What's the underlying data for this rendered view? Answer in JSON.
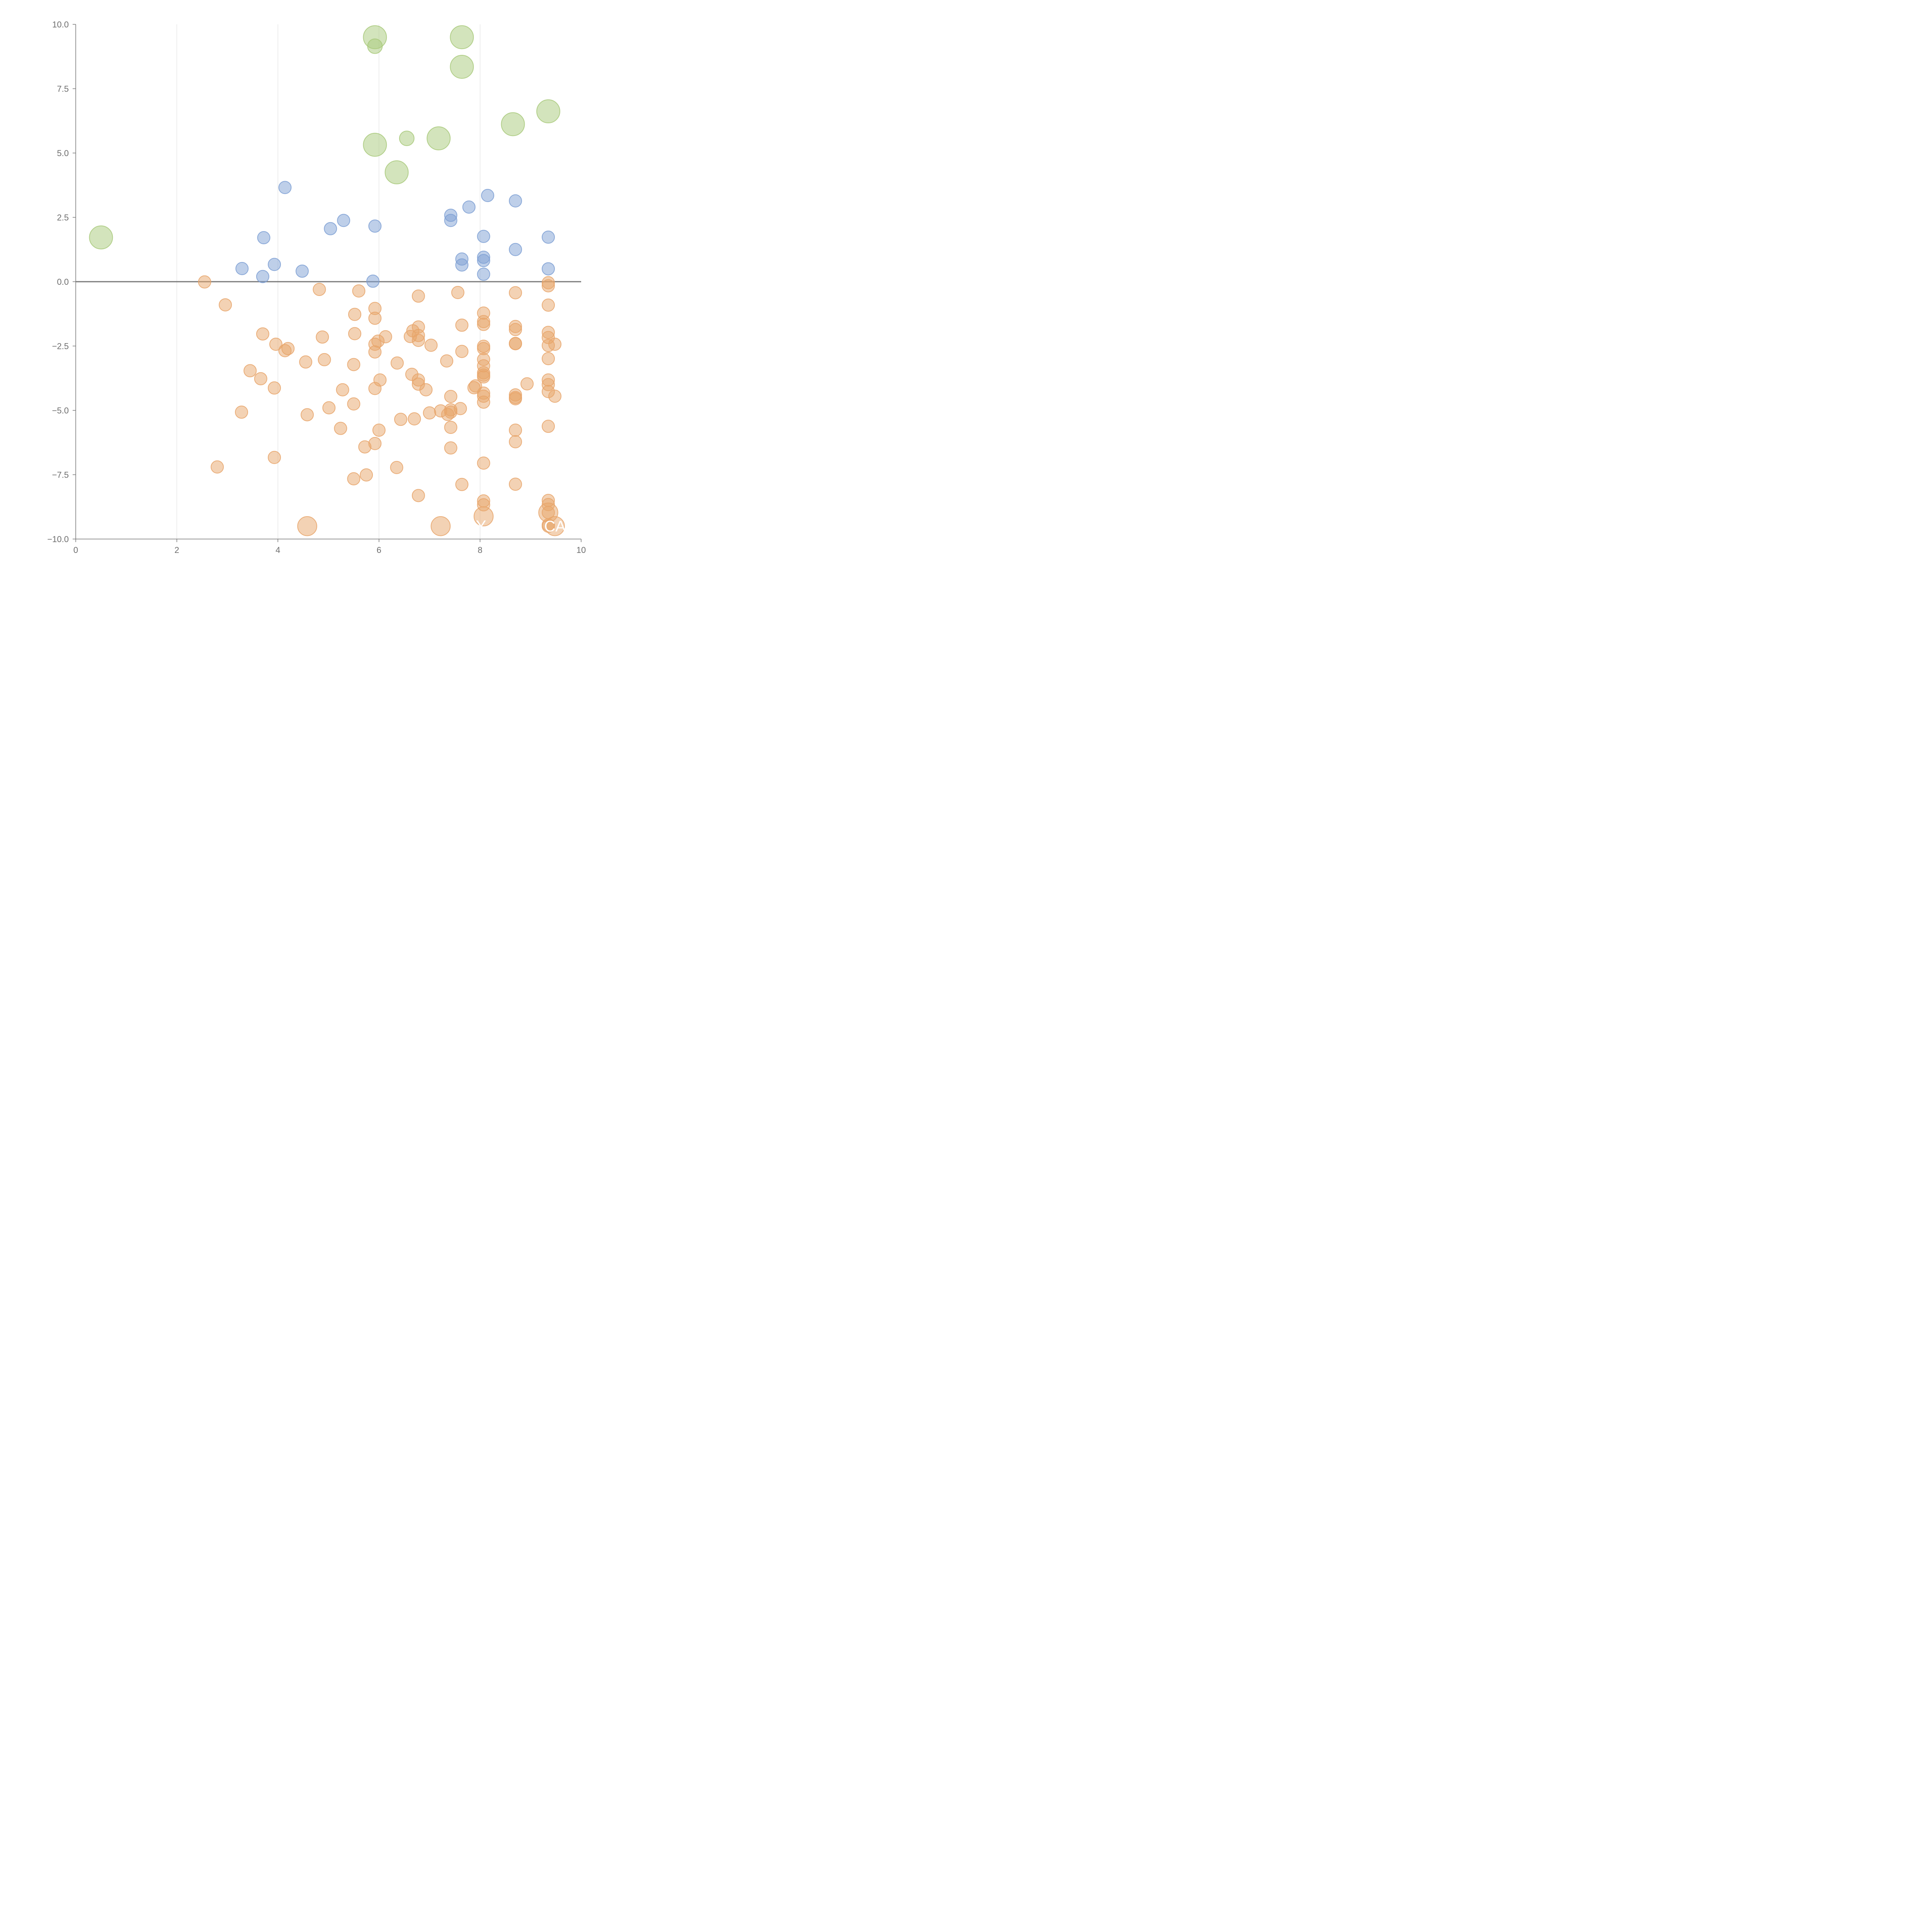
{
  "chart_data": {
    "type": "scatter",
    "variant": "bubble",
    "title": "",
    "xlabel": "",
    "ylabel": "",
    "xlim": [
      0,
      10
    ],
    "ylim": [
      -10,
      10
    ],
    "x_ticks": [
      0,
      2,
      4,
      6,
      8,
      10
    ],
    "y_ticks": [
      -10.0,
      -7.5,
      -5.0,
      -2.5,
      0.0,
      2.5,
      5.0,
      7.5,
      10.0
    ],
    "x_tick_labels": [
      "0",
      "2",
      "4",
      "6",
      "8",
      "10"
    ],
    "y_tick_labels": [
      "−10.0",
      "−7.5",
      "−5.0",
      "−2.5",
      "0.0",
      "2.5",
      "5.0",
      "7.5",
      "10.0"
    ],
    "vertical_grid": true,
    "zero_line": true,
    "legend": "none",
    "series": [
      {
        "name": "green",
        "color": "#a8c97a",
        "points": [
          {
            "x": 0.5,
            "y": 1.72,
            "size": 3.5
          },
          {
            "x": 5.92,
            "y": 9.5,
            "size": 3.5
          },
          {
            "x": 5.92,
            "y": 9.15,
            "size": 1.4
          },
          {
            "x": 7.64,
            "y": 9.5,
            "size": 3.5
          },
          {
            "x": 7.64,
            "y": 8.35,
            "size": 3.5
          },
          {
            "x": 9.35,
            "y": 6.62,
            "size": 3.5
          },
          {
            "x": 8.65,
            "y": 6.12,
            "size": 3.5
          },
          {
            "x": 6.55,
            "y": 5.57,
            "size": 1.4
          },
          {
            "x": 7.18,
            "y": 5.57,
            "size": 3.5
          },
          {
            "x": 5.92,
            "y": 5.32,
            "size": 3.5
          },
          {
            "x": 6.35,
            "y": 4.25,
            "size": 3.5
          }
        ]
      },
      {
        "name": "blue",
        "color": "#7d9fd4",
        "points": [
          {
            "x": 4.14,
            "y": 3.66
          },
          {
            "x": 8.15,
            "y": 3.35
          },
          {
            "x": 8.7,
            "y": 3.14
          },
          {
            "x": 7.78,
            "y": 2.9
          },
          {
            "x": 7.42,
            "y": 2.58
          },
          {
            "x": 7.42,
            "y": 2.38
          },
          {
            "x": 5.3,
            "y": 2.38
          },
          {
            "x": 5.92,
            "y": 2.16
          },
          {
            "x": 5.04,
            "y": 2.06
          },
          {
            "x": 3.72,
            "y": 1.71
          },
          {
            "x": 8.07,
            "y": 1.76
          },
          {
            "x": 9.35,
            "y": 1.73
          },
          {
            "x": 8.7,
            "y": 1.25
          },
          {
            "x": 8.07,
            "y": 0.95
          },
          {
            "x": 8.07,
            "y": 0.82
          },
          {
            "x": 7.64,
            "y": 0.88
          },
          {
            "x": 7.64,
            "y": 0.65
          },
          {
            "x": 3.93,
            "y": 0.67
          },
          {
            "x": 3.29,
            "y": 0.51
          },
          {
            "x": 9.35,
            "y": 0.5
          },
          {
            "x": 4.48,
            "y": 0.41
          },
          {
            "x": 8.07,
            "y": 0.29
          },
          {
            "x": 3.7,
            "y": 0.2
          },
          {
            "x": 5.88,
            "y": 0.02
          }
        ]
      },
      {
        "name": "orange",
        "color": "#e8a56a",
        "points": [
          {
            "x": 2.55,
            "y": -0.01
          },
          {
            "x": 9.35,
            "y": -0.04
          },
          {
            "x": 9.35,
            "y": -0.16
          },
          {
            "x": 4.82,
            "y": -0.3
          },
          {
            "x": 5.6,
            "y": -0.36
          },
          {
            "x": 7.56,
            "y": -0.42
          },
          {
            "x": 8.7,
            "y": -0.43
          },
          {
            "x": 6.78,
            "y": -0.56
          },
          {
            "x": 2.96,
            "y": -0.9
          },
          {
            "x": 9.35,
            "y": -0.91
          },
          {
            "x": 5.92,
            "y": -1.04
          },
          {
            "x": 8.07,
            "y": -1.22
          },
          {
            "x": 5.52,
            "y": -1.27
          },
          {
            "x": 5.92,
            "y": -1.42
          },
          {
            "x": 8.07,
            "y": -1.55
          },
          {
            "x": 8.07,
            "y": -1.66
          },
          {
            "x": 7.64,
            "y": -1.69
          },
          {
            "x": 8.7,
            "y": -1.74
          },
          {
            "x": 6.78,
            "y": -1.76
          },
          {
            "x": 8.7,
            "y": -1.86
          },
          {
            "x": 6.67,
            "y": -1.91
          },
          {
            "x": 9.35,
            "y": -1.97
          },
          {
            "x": 3.7,
            "y": -2.03
          },
          {
            "x": 5.52,
            "y": -2.02
          },
          {
            "x": 6.78,
            "y": -2.09
          },
          {
            "x": 6.62,
            "y": -2.13
          },
          {
            "x": 6.13,
            "y": -2.14
          },
          {
            "x": 4.88,
            "y": -2.15
          },
          {
            "x": 9.35,
            "y": -2.17
          },
          {
            "x": 6.78,
            "y": -2.28
          },
          {
            "x": 5.98,
            "y": -2.31
          },
          {
            "x": 8.7,
            "y": -2.4
          },
          {
            "x": 8.7,
            "y": -2.41
          },
          {
            "x": 3.96,
            "y": -2.43
          },
          {
            "x": 5.92,
            "y": -2.43
          },
          {
            "x": 9.48,
            "y": -2.43
          },
          {
            "x": 7.03,
            "y": -2.47
          },
          {
            "x": 9.35,
            "y": -2.48
          },
          {
            "x": 8.07,
            "y": -2.51
          },
          {
            "x": 8.07,
            "y": -2.6
          },
          {
            "x": 4.2,
            "y": -2.6
          },
          {
            "x": 4.14,
            "y": -2.68
          },
          {
            "x": 7.64,
            "y": -2.71
          },
          {
            "x": 5.92,
            "y": -2.73
          },
          {
            "x": 9.35,
            "y": -2.99
          },
          {
            "x": 8.07,
            "y": -3.02
          },
          {
            "x": 4.92,
            "y": -3.03
          },
          {
            "x": 7.34,
            "y": -3.08
          },
          {
            "x": 4.55,
            "y": -3.12
          },
          {
            "x": 6.36,
            "y": -3.16
          },
          {
            "x": 5.5,
            "y": -3.22
          },
          {
            "x": 8.07,
            "y": -3.27
          },
          {
            "x": 3.45,
            "y": -3.46
          },
          {
            "x": 8.07,
            "y": -3.54
          },
          {
            "x": 8.07,
            "y": -3.63
          },
          {
            "x": 6.65,
            "y": -3.6
          },
          {
            "x": 8.07,
            "y": -3.7
          },
          {
            "x": 3.66,
            "y": -3.77
          },
          {
            "x": 6.78,
            "y": -3.82
          },
          {
            "x": 9.35,
            "y": -3.82
          },
          {
            "x": 6.02,
            "y": -3.82
          },
          {
            "x": 8.93,
            "y": -3.97
          },
          {
            "x": 6.78,
            "y": -3.98
          },
          {
            "x": 9.35,
            "y": -4.0
          },
          {
            "x": 7.91,
            "y": -4.05
          },
          {
            "x": 7.88,
            "y": -4.12
          },
          {
            "x": 3.93,
            "y": -4.13
          },
          {
            "x": 5.92,
            "y": -4.15
          },
          {
            "x": 6.93,
            "y": -4.2
          },
          {
            "x": 5.28,
            "y": -4.2
          },
          {
            "x": 9.35,
            "y": -4.27
          },
          {
            "x": 8.07,
            "y": -4.33
          },
          {
            "x": 8.7,
            "y": -4.4
          },
          {
            "x": 8.07,
            "y": -4.45
          },
          {
            "x": 7.42,
            "y": -4.46
          },
          {
            "x": 8.7,
            "y": -4.5
          },
          {
            "x": 9.48,
            "y": -4.45
          },
          {
            "x": 8.7,
            "y": -4.55
          },
          {
            "x": 8.07,
            "y": -4.68
          },
          {
            "x": 5.5,
            "y": -4.75
          },
          {
            "x": 5.01,
            "y": -4.9
          },
          {
            "x": 7.61,
            "y": -4.93
          },
          {
            "x": 7.42,
            "y": -4.98
          },
          {
            "x": 7.22,
            "y": -5.02
          },
          {
            "x": 3.28,
            "y": -5.07
          },
          {
            "x": 7.42,
            "y": -5.07
          },
          {
            "x": 7.0,
            "y": -5.1
          },
          {
            "x": 7.36,
            "y": -5.16
          },
          {
            "x": 4.58,
            "y": -5.17
          },
          {
            "x": 6.7,
            "y": -5.33
          },
          {
            "x": 6.43,
            "y": -5.35
          },
          {
            "x": 9.35,
            "y": -5.62
          },
          {
            "x": 7.42,
            "y": -5.66
          },
          {
            "x": 5.24,
            "y": -5.7
          },
          {
            "x": 8.7,
            "y": -5.77
          },
          {
            "x": 6.0,
            "y": -5.77
          },
          {
            "x": 8.7,
            "y": -6.22
          },
          {
            "x": 5.92,
            "y": -6.29
          },
          {
            "x": 5.72,
            "y": -6.42
          },
          {
            "x": 7.42,
            "y": -6.46
          },
          {
            "x": 3.93,
            "y": -6.83
          },
          {
            "x": 8.07,
            "y": -7.05
          },
          {
            "x": 2.8,
            "y": -7.2
          },
          {
            "x": 6.35,
            "y": -7.22
          },
          {
            "x": 5.75,
            "y": -7.51
          },
          {
            "x": 5.5,
            "y": -7.66
          },
          {
            "x": 8.7,
            "y": -7.87
          },
          {
            "x": 7.64,
            "y": -7.88
          },
          {
            "x": 6.78,
            "y": -8.31
          },
          {
            "x": 9.35,
            "y": -8.5
          },
          {
            "x": 8.07,
            "y": -8.52
          },
          {
            "x": 8.07,
            "y": -8.67
          },
          {
            "x": 9.35,
            "y": -8.66
          },
          {
            "x": 9.35,
            "y": -8.97
          },
          {
            "x": 9.35,
            "y": -9.45
          },
          {
            "x": 9.35,
            "y": -9.5
          },
          {
            "x": 9.35,
            "y": -8.97,
            "size": 2.4
          },
          {
            "x": 8.07,
            "y": -9.12,
            "size": 2.4
          },
          {
            "x": 4.58,
            "y": -9.5,
            "size": 2.4
          },
          {
            "x": 7.22,
            "y": -9.5,
            "size": 2.4
          },
          {
            "x": 9.48,
            "y": -9.5,
            "size": 2.4
          }
        ]
      }
    ],
    "bubble_labels": [
      {
        "text": "Y",
        "x": 8.02,
        "y": -9.48
      },
      {
        "text": "CA",
        "x": 9.48,
        "y": -9.5
      }
    ]
  }
}
